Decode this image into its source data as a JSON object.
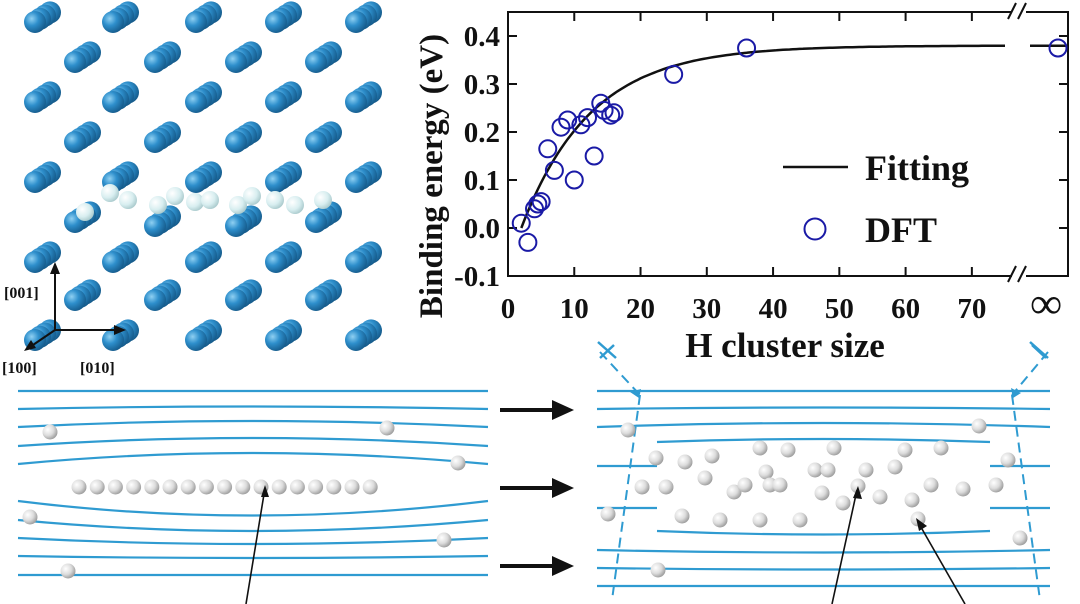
{
  "panel_a": {
    "axis_labels": [
      "[001]",
      "[100]",
      "[010]"
    ]
  },
  "chart_data": {
    "type": "scatter",
    "title": "",
    "xlabel": "H cluster size",
    "ylabel": "Binding energy (eV)",
    "xlim": [
      0,
      75
    ],
    "ylim": [
      -0.1,
      0.45
    ],
    "x_ticks": [
      "0",
      "10",
      "20",
      "30",
      "40",
      "50",
      "60",
      "70"
    ],
    "y_ticks": [
      "-0.1",
      "0.0",
      "0.1",
      "0.2",
      "0.3",
      "0.4"
    ],
    "x_break_label": "∞",
    "legend_position": "right",
    "grid": false,
    "series": [
      {
        "name": "Fitting",
        "kind": "line",
        "color": "#111111",
        "model": {
          "form": "a*(1-exp(-(x-x0)/tau))",
          "a": 0.38,
          "x0": 2,
          "tau": 10.5
        }
      },
      {
        "name": "DFT",
        "kind": "scatter",
        "color": "#1a1aa6",
        "points": [
          [
            2,
            0.01
          ],
          [
            3,
            -0.03
          ],
          [
            4,
            0.04
          ],
          [
            4.5,
            0.05
          ],
          [
            5,
            0.055
          ],
          [
            6,
            0.165
          ],
          [
            7,
            0.12
          ],
          [
            8,
            0.21
          ],
          [
            9,
            0.225
          ],
          [
            10,
            0.1
          ],
          [
            11,
            0.215
          ],
          [
            12,
            0.23
          ],
          [
            13,
            0.15
          ],
          [
            14,
            0.26
          ],
          [
            14.5,
            0.245
          ],
          [
            15.5,
            0.235
          ],
          [
            16,
            0.24
          ],
          [
            25,
            0.32
          ],
          [
            36,
            0.375
          ]
        ],
        "infinity_value": 0.375
      }
    ]
  },
  "panel_c": {
    "arrow_color": "#111111",
    "line_color": "#2f9bd1"
  }
}
